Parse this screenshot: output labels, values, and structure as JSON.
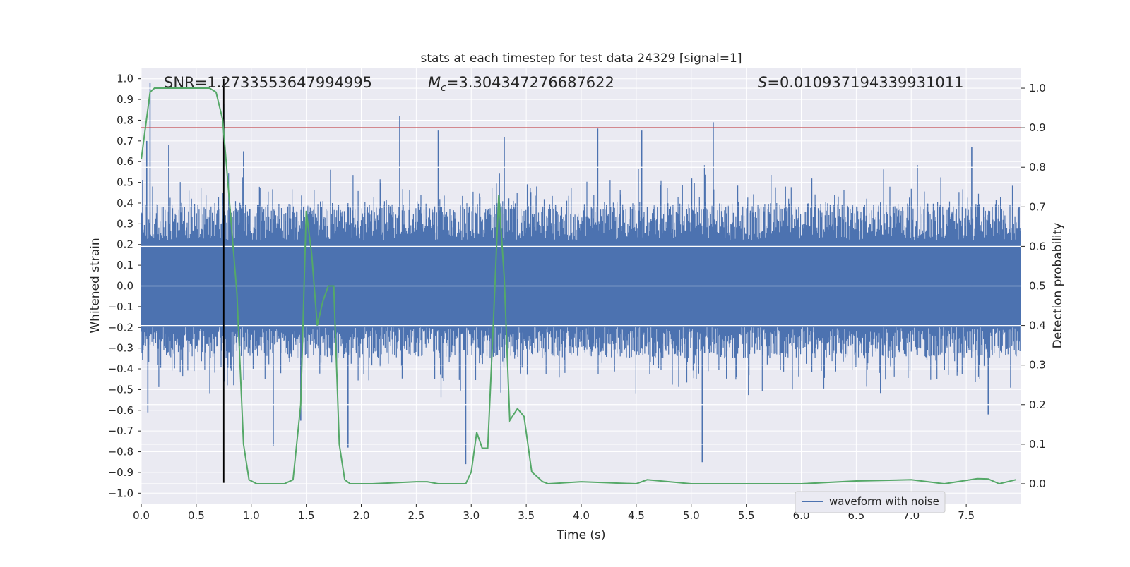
{
  "chart_data": {
    "type": "line",
    "title": "stats at each timestep for test data 24329 [signal=1]",
    "xlabel": "Time (s)",
    "ylabel_left": "Whitened strain",
    "ylabel_right": "Detection probability",
    "xlim": [
      0.0,
      8.0
    ],
    "ylim_left": [
      -1.05,
      1.05
    ],
    "ylim_right": [
      -0.05,
      1.05
    ],
    "x_ticks": [
      "0.0",
      "0.5",
      "1.0",
      "1.5",
      "2.0",
      "2.5",
      "3.0",
      "3.5",
      "4.0",
      "4.5",
      "5.0",
      "5.5",
      "6.0",
      "6.5",
      "7.0",
      "7.5"
    ],
    "x_tick_values": [
      0.0,
      0.5,
      1.0,
      1.5,
      2.0,
      2.5,
      3.0,
      3.5,
      4.0,
      4.5,
      5.0,
      5.5,
      6.0,
      6.5,
      7.0,
      7.5
    ],
    "y_left_ticks": [
      "1.0",
      "0.9",
      "0.8",
      "0.7",
      "0.6",
      "0.5",
      "0.4",
      "0.3",
      "0.2",
      "0.1",
      "0.0",
      "−0.1",
      "−0.2",
      "−0.3",
      "−0.4",
      "−0.5",
      "−0.6",
      "−0.7",
      "−0.8",
      "−0.9",
      "−1.0"
    ],
    "y_left_tick_values": [
      1.0,
      0.9,
      0.8,
      0.7,
      0.6,
      0.5,
      0.4,
      0.3,
      0.2,
      0.1,
      0.0,
      -0.1,
      -0.2,
      -0.3,
      -0.4,
      -0.5,
      -0.6,
      -0.7,
      -0.8,
      -0.9,
      -1.0
    ],
    "y_right_ticks": [
      "1.0",
      "0.9",
      "0.8",
      "0.7",
      "0.6",
      "0.5",
      "0.4",
      "0.3",
      "0.2",
      "0.1",
      "0.0"
    ],
    "y_right_tick_values": [
      1.0,
      0.9,
      0.8,
      0.7,
      0.6,
      0.5,
      0.4,
      0.3,
      0.2,
      0.1,
      0.0
    ],
    "annotations": {
      "snr": "SNR=1.2733553647994995",
      "mc": "M=3.304347276687622",
      "mc_subscript": "c",
      "s": "S=0.010937194339931011"
    },
    "legend": {
      "entries": [
        "waveform with noise"
      ],
      "location": "lower-right"
    },
    "threshold": {
      "value": 0.9,
      "axis": "right",
      "color": "#c44e52"
    },
    "marker_line": {
      "x": 0.75,
      "y_from": -0.95,
      "y_to": 1.0,
      "color": "#000000"
    },
    "series": [
      {
        "name": "waveform with noise",
        "axis": "left",
        "color": "#4c72b0",
        "style": "noise-band",
        "band_min": -0.35,
        "band_max": 0.4,
        "peaks": [
          {
            "x": 0.05,
            "y": 0.7
          },
          {
            "x": 0.08,
            "y": 0.98
          },
          {
            "x": 0.25,
            "y": 0.68
          },
          {
            "x": 0.75,
            "y": 0.88
          },
          {
            "x": 0.93,
            "y": 0.65
          },
          {
            "x": 2.35,
            "y": 0.82
          },
          {
            "x": 2.7,
            "y": 0.75
          },
          {
            "x": 3.3,
            "y": 0.72
          },
          {
            "x": 4.15,
            "y": 0.76
          },
          {
            "x": 4.55,
            "y": 0.75
          },
          {
            "x": 5.2,
            "y": 0.79
          },
          {
            "x": 7.55,
            "y": 0.67
          },
          {
            "x": 0.06,
            "y": -0.61
          },
          {
            "x": 1.2,
            "y": -0.77
          },
          {
            "x": 1.45,
            "y": -0.65
          },
          {
            "x": 1.88,
            "y": -0.78
          },
          {
            "x": 2.95,
            "y": -0.86
          },
          {
            "x": 5.1,
            "y": -0.85
          },
          {
            "x": 7.7,
            "y": -0.62
          }
        ]
      },
      {
        "name": "detection probability",
        "axis": "right",
        "color": "#55a868",
        "x": [
          0.0,
          0.08,
          0.12,
          0.3,
          0.5,
          0.62,
          0.68,
          0.74,
          0.8,
          0.87,
          0.93,
          0.98,
          1.05,
          1.3,
          1.38,
          1.45,
          1.5,
          1.55,
          1.6,
          1.65,
          1.7,
          1.75,
          1.8,
          1.85,
          1.9,
          2.1,
          2.5,
          2.6,
          2.7,
          2.8,
          2.95,
          3.0,
          3.05,
          3.1,
          3.15,
          3.2,
          3.25,
          3.3,
          3.35,
          3.42,
          3.48,
          3.55,
          3.65,
          3.7,
          4.0,
          4.5,
          4.6,
          5.0,
          6.0,
          6.5,
          7.0,
          7.3,
          7.6,
          7.7,
          7.8,
          7.95
        ],
        "y": [
          0.82,
          0.99,
          1.0,
          1.0,
          1.0,
          1.0,
          0.99,
          0.92,
          0.72,
          0.48,
          0.1,
          0.01,
          0.0,
          0.0,
          0.01,
          0.2,
          0.69,
          0.58,
          0.4,
          0.46,
          0.5,
          0.5,
          0.1,
          0.01,
          0.0,
          0.0,
          0.005,
          0.005,
          0.0,
          0.0,
          0.0,
          0.03,
          0.13,
          0.09,
          0.09,
          0.4,
          0.73,
          0.52,
          0.16,
          0.19,
          0.17,
          0.03,
          0.005,
          0.0,
          0.005,
          0.0,
          0.01,
          0.0,
          0.0,
          0.007,
          0.01,
          0.0,
          0.013,
          0.012,
          0.0,
          0.01
        ]
      }
    ]
  }
}
